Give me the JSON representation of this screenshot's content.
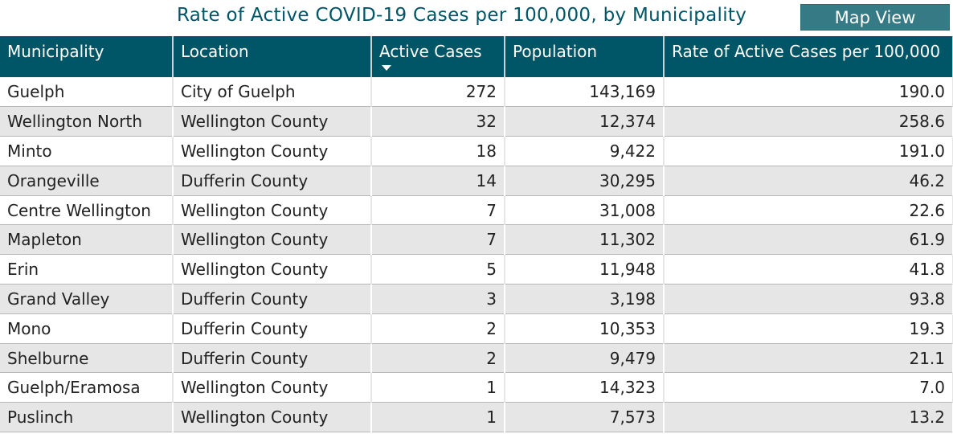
{
  "title": "Rate of Active COVID-19 Cases per 100,000, by Municipality",
  "map_view_label": "Map View",
  "columns": [
    "Municipality",
    "Location",
    "Active Cases",
    "Population",
    "Rate of Active Cases per 100,000"
  ],
  "sort": {
    "column": "Active Cases",
    "direction": "descending"
  },
  "rows": [
    [
      "Guelph",
      "City of Guelph",
      "272",
      "143,169",
      "190.0"
    ],
    [
      "Wellington North",
      "Wellington County",
      "32",
      "12,374",
      "258.6"
    ],
    [
      "Minto",
      "Wellington County",
      "18",
      "9,422",
      "191.0"
    ],
    [
      "Orangeville",
      "Dufferin County",
      "14",
      "30,295",
      "46.2"
    ],
    [
      "Centre Wellington",
      "Wellington County",
      "7",
      "31,008",
      "22.6"
    ],
    [
      "Mapleton",
      "Wellington County",
      "7",
      "11,302",
      "61.9"
    ],
    [
      "Erin",
      "Wellington County",
      "5",
      "11,948",
      "41.8"
    ],
    [
      "Grand Valley",
      "Dufferin County",
      "3",
      "3,198",
      "93.8"
    ],
    [
      "Mono",
      "Dufferin County",
      "2",
      "10,353",
      "19.3"
    ],
    [
      "Shelburne",
      "Dufferin County",
      "2",
      "9,479",
      "21.1"
    ],
    [
      "Guelph/Eramosa",
      "Wellington County",
      "1",
      "14,323",
      "7.0"
    ],
    [
      "Puslinch",
      "Wellington County",
      "1",
      "7,573",
      "13.2"
    ]
  ]
}
